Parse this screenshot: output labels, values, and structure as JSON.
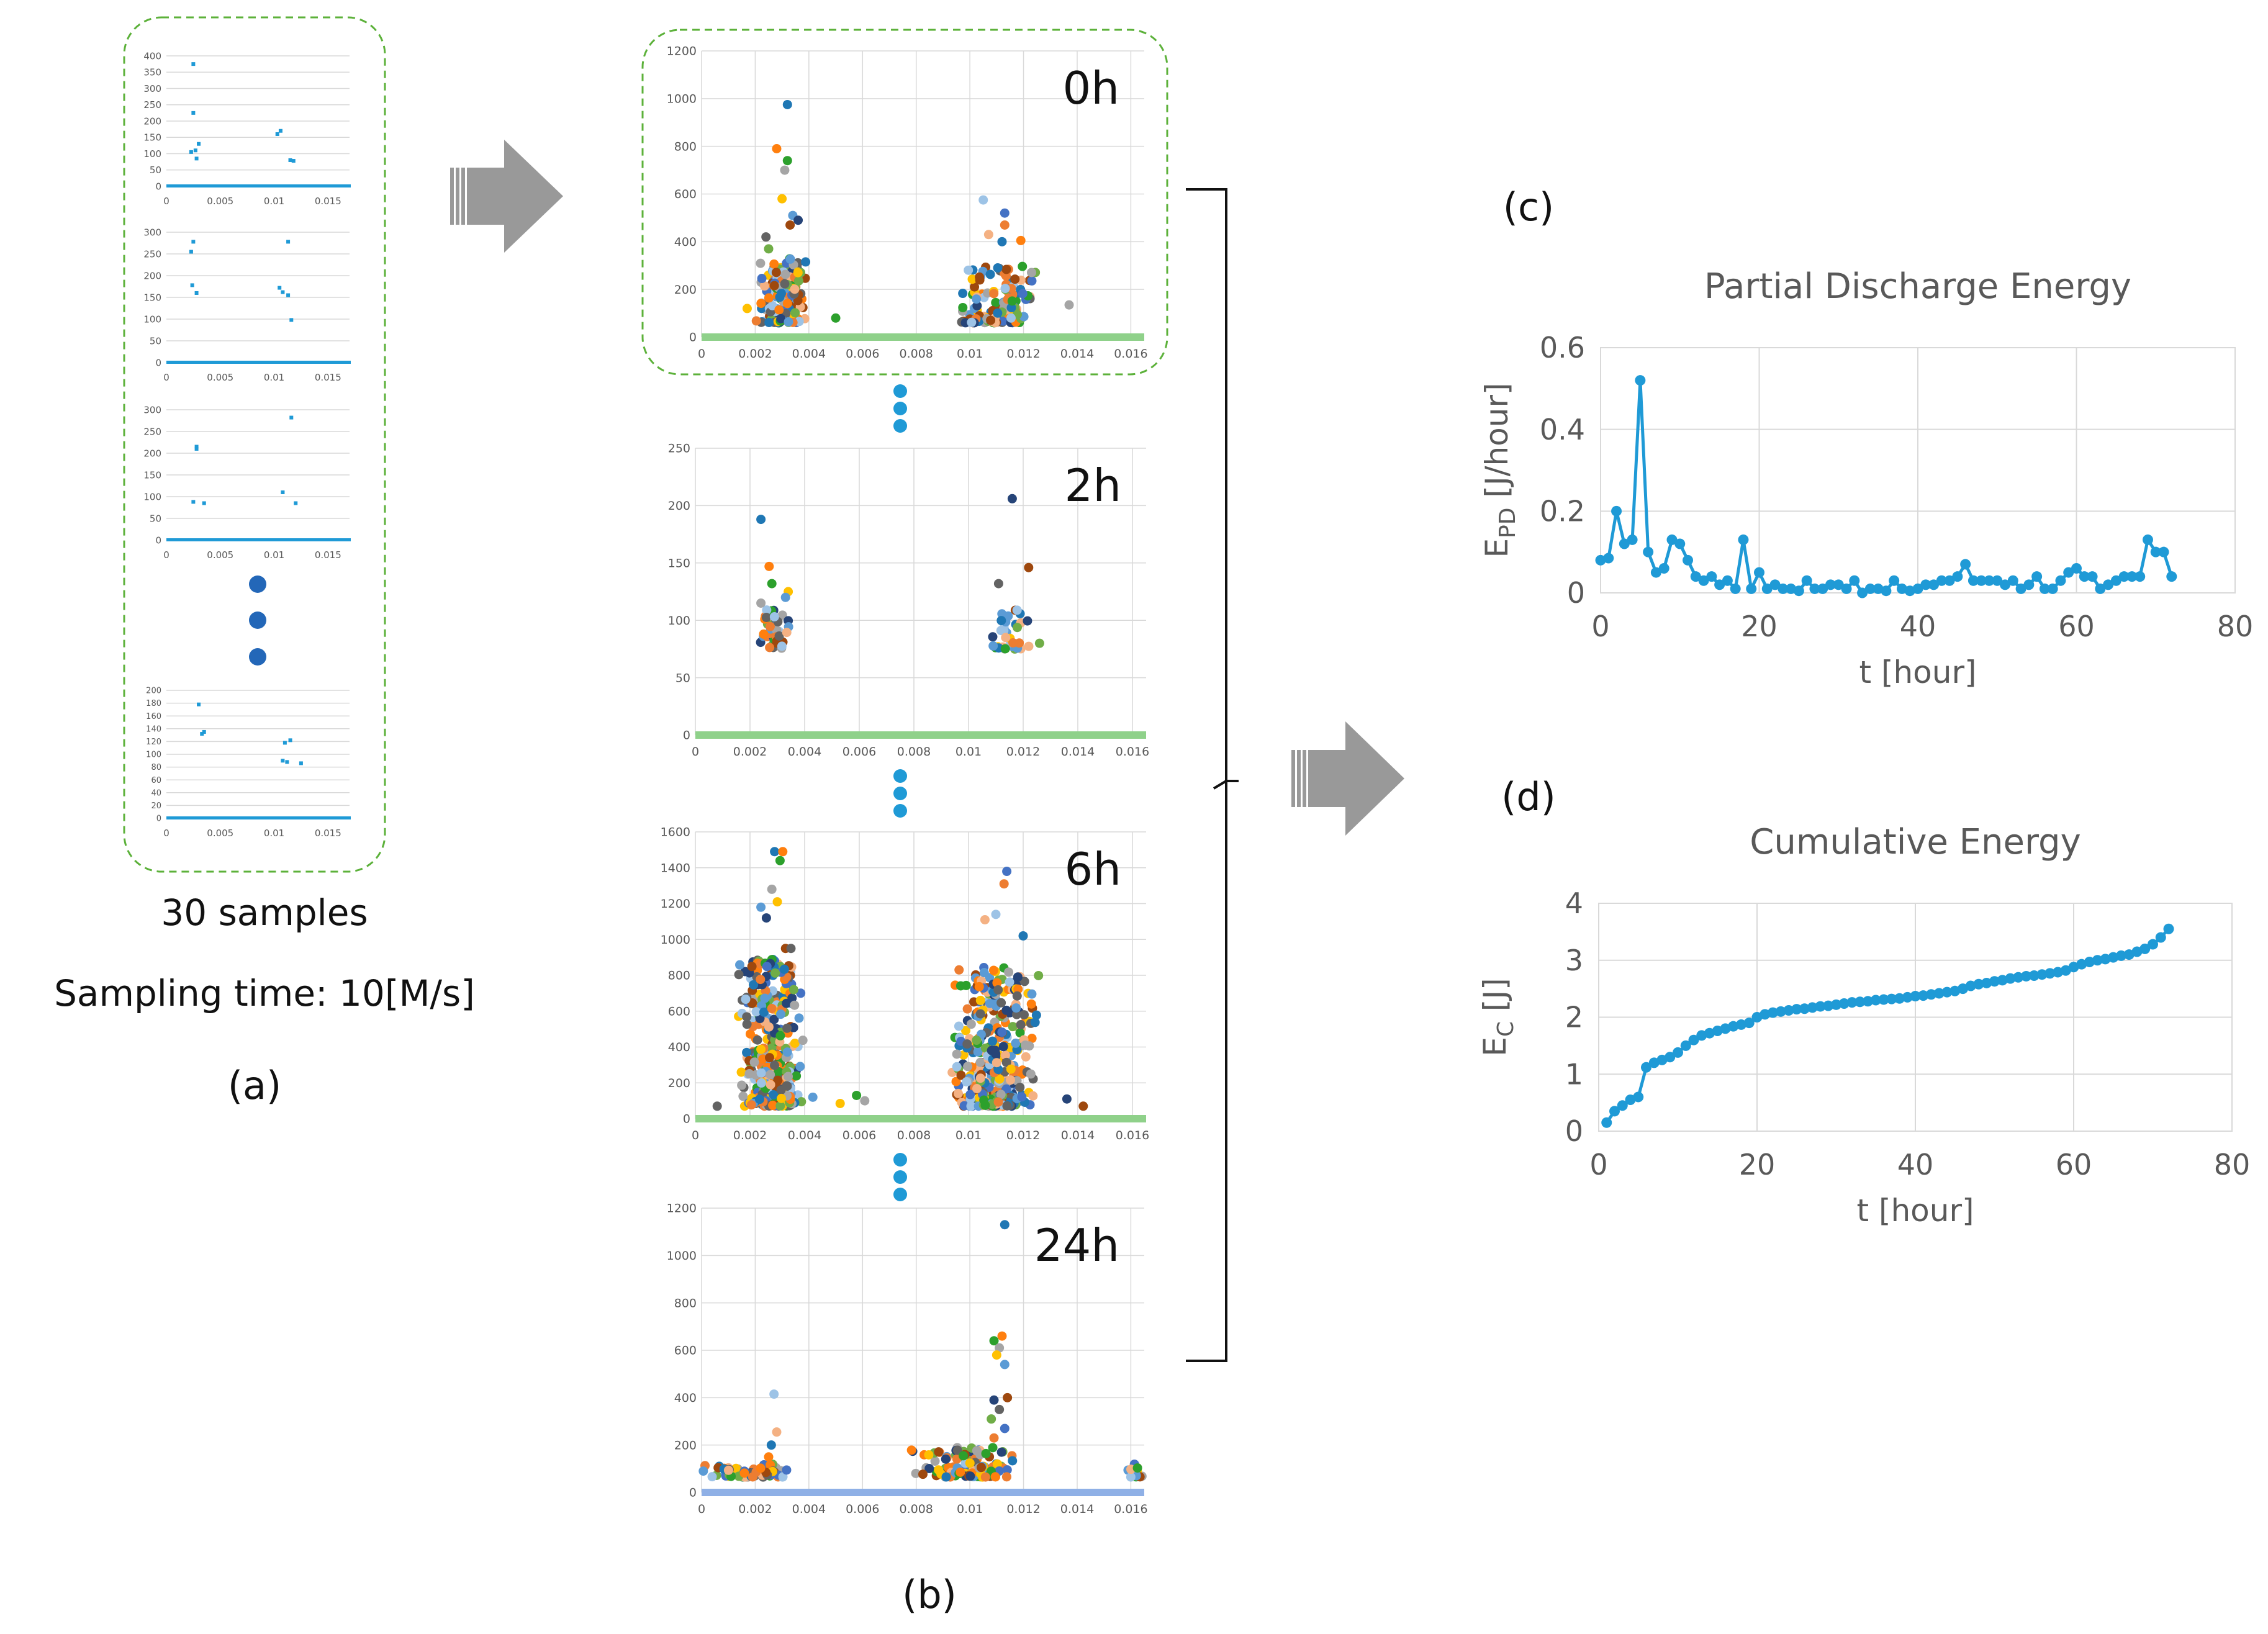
{
  "figure": {
    "panel_a": {
      "caption_samples": "30 samples",
      "caption_sampling": "Sampling time: 10[M/s]",
      "label": "(a)"
    },
    "panel_b": {
      "label": "(b)"
    },
    "panel_c": {
      "label": "(c)"
    },
    "panel_d": {
      "label": "(d)"
    }
  },
  "colors": {
    "marker_blue": "#1f9ad6",
    "grid": "#d9d9d9",
    "dash_green": "#5cb13a",
    "arrow_gray": "#999999",
    "baseline_green": "#8fd18a",
    "baseline_blue": "#8fb0e6",
    "dot_dark_blue": "#2367b8",
    "palette": [
      "#1f77b4",
      "#ff7f0e",
      "#2ca02c",
      "#a5a5a5",
      "#ffc000",
      "#5b9bd5",
      "#264478",
      "#9e480e",
      "#636363",
      "#70ad47",
      "#4472c4",
      "#ed7d31",
      "#9dc3e6",
      "#f4b183"
    ]
  },
  "chart_data": [
    {
      "id": "a1",
      "type": "scatter",
      "title": "",
      "xlim": [
        0,
        0.017
      ],
      "ylim": [
        0,
        400
      ],
      "x_ticks": [
        "0",
        "0.005",
        "0.01",
        "0.015"
      ],
      "x_tick_values": [
        0,
        0.005,
        0.01,
        0.015
      ],
      "y_ticks": [
        "0",
        "50",
        "100",
        "150",
        "200",
        "250",
        "300",
        "350",
        "400"
      ],
      "y_tick_values": [
        0,
        50,
        100,
        150,
        200,
        250,
        300,
        350,
        400
      ],
      "points": [
        [
          0.0025,
          375
        ],
        [
          0.0025,
          225
        ],
        [
          0.0027,
          110
        ],
        [
          0.003,
          130
        ],
        [
          0.0028,
          85
        ],
        [
          0.0023,
          105
        ],
        [
          0.0103,
          160
        ],
        [
          0.0106,
          170
        ],
        [
          0.0115,
          80
        ],
        [
          0.0118,
          78
        ]
      ]
    },
    {
      "id": "a2",
      "type": "scatter",
      "title": "",
      "xlim": [
        0,
        0.017
      ],
      "ylim": [
        0,
        300
      ],
      "x_ticks": [
        "0",
        "0.005",
        "0.01",
        "0.015"
      ],
      "x_tick_values": [
        0,
        0.005,
        0.01,
        0.015
      ],
      "y_ticks": [
        "0",
        "50",
        "100",
        "150",
        "200",
        "250",
        "300"
      ],
      "y_tick_values": [
        0,
        50,
        100,
        150,
        200,
        250,
        300
      ],
      "points": [
        [
          0.0025,
          278
        ],
        [
          0.0023,
          255
        ],
        [
          0.0024,
          178
        ],
        [
          0.0028,
          160
        ],
        [
          0.0105,
          172
        ],
        [
          0.0108,
          162
        ],
        [
          0.0113,
          155
        ],
        [
          0.0113,
          278
        ],
        [
          0.0116,
          98
        ]
      ]
    },
    {
      "id": "a3",
      "type": "scatter",
      "title": "",
      "xlim": [
        0,
        0.017
      ],
      "ylim": [
        0,
        300
      ],
      "x_ticks": [
        "0",
        "0.005",
        "0.01",
        "0.015"
      ],
      "x_tick_values": [
        0,
        0.005,
        0.01,
        0.015
      ],
      "y_ticks": [
        "0",
        "50",
        "100",
        "150",
        "200",
        "250",
        "300"
      ],
      "y_tick_values": [
        0,
        50,
        100,
        150,
        200,
        250,
        300
      ],
      "points": [
        [
          0.0028,
          215
        ],
        [
          0.0028,
          210
        ],
        [
          0.0025,
          88
        ],
        [
          0.0035,
          85
        ],
        [
          0.0116,
          282
        ],
        [
          0.0108,
          110
        ],
        [
          0.012,
          85
        ]
      ]
    },
    {
      "id": "a4",
      "type": "scatter",
      "title": "",
      "xlim": [
        0,
        0.017
      ],
      "ylim": [
        0,
        200
      ],
      "x_ticks": [
        "0",
        "0.005",
        "0.01",
        "0.015"
      ],
      "x_tick_values": [
        0,
        0.005,
        0.01,
        0.015
      ],
      "y_ticks": [
        "0",
        "20",
        "40",
        "60",
        "80",
        "100",
        "120",
        "140",
        "160",
        "180",
        "200"
      ],
      "y_tick_values": [
        0,
        20,
        40,
        60,
        80,
        100,
        120,
        140,
        160,
        180,
        200
      ],
      "points": [
        [
          0.003,
          178
        ],
        [
          0.0035,
          135
        ],
        [
          0.0033,
          132
        ],
        [
          0.011,
          118
        ],
        [
          0.0115,
          122
        ],
        [
          0.0108,
          90
        ],
        [
          0.0112,
          88
        ],
        [
          0.0125,
          86
        ]
      ]
    },
    {
      "id": "b0",
      "type": "scatter",
      "annotation": "0h",
      "xlim": [
        0,
        0.0165
      ],
      "ylim": [
        0,
        1200
      ],
      "x_ticks": [
        "0",
        "0.002",
        "0.004",
        "0.006",
        "0.008",
        "0.01",
        "0.012",
        "0.014",
        "0.016"
      ],
      "x_tick_values": [
        0,
        0.002,
        0.004,
        0.006,
        0.008,
        0.01,
        0.012,
        0.014,
        0.016
      ],
      "y_ticks": [
        "0",
        "200",
        "400",
        "600",
        "800",
        "1000",
        "1200"
      ],
      "y_tick_values": [
        0,
        200,
        400,
        600,
        800,
        1000,
        1200
      ],
      "baseline": "green",
      "clusters": [
        {
          "x0": 0.002,
          "x1": 0.0041,
          "ymin": 60,
          "ymax": 330,
          "n": 150
        },
        {
          "x0": 0.0095,
          "x1": 0.0126,
          "ymin": 60,
          "ymax": 300,
          "n": 130
        }
      ],
      "points": [
        [
          0.0032,
          975
        ],
        [
          0.0028,
          790
        ],
        [
          0.0032,
          740
        ],
        [
          0.0031,
          700
        ],
        [
          0.003,
          580
        ],
        [
          0.0034,
          510
        ],
        [
          0.0036,
          490
        ],
        [
          0.0033,
          470
        ],
        [
          0.0024,
          420
        ],
        [
          0.0025,
          370
        ],
        [
          0.0113,
          520
        ],
        [
          0.0113,
          470
        ],
        [
          0.0105,
          575
        ],
        [
          0.0107,
          430
        ],
        [
          0.0112,
          400
        ],
        [
          0.0119,
          405
        ],
        [
          0.005,
          80
        ],
        [
          0.0137,
          135
        ],
        [
          0.0017,
          120
        ]
      ]
    },
    {
      "id": "b2",
      "type": "scatter",
      "annotation": "2h",
      "xlim": [
        0,
        0.0165
      ],
      "ylim": [
        0,
        250
      ],
      "x_ticks": [
        "0",
        "0.002",
        "0.004",
        "0.006",
        "0.008",
        "0.01",
        "0.012",
        "0.014",
        "0.016"
      ],
      "x_tick_values": [
        0,
        0.002,
        0.004,
        0.006,
        0.008,
        0.01,
        0.012,
        0.014,
        0.016
      ],
      "y_ticks": [
        "0",
        "50",
        "100",
        "150",
        "200",
        "250"
      ],
      "y_tick_values": [
        0,
        50,
        100,
        150,
        200,
        250
      ],
      "baseline": "green",
      "clusters": [
        {
          "x0": 0.0022,
          "x1": 0.0036,
          "ymin": 75,
          "ymax": 110,
          "n": 40
        },
        {
          "x0": 0.0108,
          "x1": 0.0123,
          "ymin": 75,
          "ymax": 110,
          "n": 35
        }
      ],
      "points": [
        [
          0.0024,
          188
        ],
        [
          0.0027,
          147
        ],
        [
          0.0028,
          132
        ],
        [
          0.0024,
          115
        ],
        [
          0.0034,
          125
        ],
        [
          0.0033,
          120
        ],
        [
          0.0116,
          206
        ],
        [
          0.0122,
          146
        ],
        [
          0.0111,
          132
        ],
        [
          0.0126,
          80
        ]
      ]
    },
    {
      "id": "b6",
      "type": "scatter",
      "annotation": "6h",
      "xlim": [
        0,
        0.0165
      ],
      "ylim": [
        0,
        1600
      ],
      "x_ticks": [
        "0",
        "0.002",
        "0.004",
        "0.006",
        "0.008",
        "0.01",
        "0.012",
        "0.014",
        "0.016"
      ],
      "x_tick_values": [
        0,
        0.002,
        0.004,
        0.006,
        0.008,
        0.01,
        0.012,
        0.014,
        0.016
      ],
      "y_ticks": [
        "0",
        "200",
        "400",
        "600",
        "800",
        "1000",
        "1200",
        "1400",
        "1600"
      ],
      "y_tick_values": [
        0,
        200,
        400,
        600,
        800,
        1000,
        1200,
        1400,
        1600
      ],
      "baseline": "green",
      "clusters": [
        {
          "x0": 0.0015,
          "x1": 0.004,
          "ymin": 70,
          "ymax": 900,
          "n": 380
        },
        {
          "x0": 0.0092,
          "x1": 0.0126,
          "ymin": 70,
          "ymax": 850,
          "n": 380
        }
      ],
      "points": [
        [
          0.0029,
          1490
        ],
        [
          0.0032,
          1490
        ],
        [
          0.0031,
          1440
        ],
        [
          0.0028,
          1280
        ],
        [
          0.003,
          1210
        ],
        [
          0.0024,
          1180
        ],
        [
          0.0026,
          1120
        ],
        [
          0.0033,
          950
        ],
        [
          0.0035,
          950
        ],
        [
          0.0036,
          720
        ],
        [
          0.0114,
          1380
        ],
        [
          0.0113,
          1310
        ],
        [
          0.011,
          1140
        ],
        [
          0.0106,
          1110
        ],
        [
          0.012,
          1020
        ],
        [
          0.0123,
          640
        ],
        [
          0.0059,
          130
        ],
        [
          0.0062,
          100
        ],
        [
          0.0053,
          85
        ],
        [
          0.0043,
          120
        ],
        [
          0.0136,
          110
        ],
        [
          0.0142,
          70
        ],
        [
          0.0008,
          70
        ]
      ]
    },
    {
      "id": "b24",
      "type": "scatter",
      "annotation": "24h",
      "xlim": [
        0,
        0.0165
      ],
      "ylim": [
        0,
        1200
      ],
      "x_ticks": [
        "0",
        "0.002",
        "0.004",
        "0.006",
        "0.008",
        "0.01",
        "0.012",
        "0.014",
        "0.016"
      ],
      "x_tick_values": [
        0,
        0.002,
        0.004,
        0.006,
        0.008,
        0.01,
        0.012,
        0.014,
        0.016
      ],
      "y_ticks": [
        "0",
        "200",
        "400",
        "600",
        "800",
        "1000",
        "1200"
      ],
      "y_tick_values": [
        0,
        200,
        400,
        600,
        800,
        1000,
        1200
      ],
      "baseline": "blue",
      "clusters": [
        {
          "x0": 0.0,
          "x1": 0.0034,
          "ymin": 65,
          "ymax": 120,
          "n": 70
        },
        {
          "x0": 0.0077,
          "x1": 0.0123,
          "ymin": 65,
          "ymax": 190,
          "n": 110
        },
        {
          "x0": 0.0158,
          "x1": 0.0165,
          "ymin": 65,
          "ymax": 120,
          "n": 14
        }
      ],
      "points": [
        [
          0.0113,
          1130
        ],
        [
          0.0112,
          660
        ],
        [
          0.0109,
          640
        ],
        [
          0.0111,
          610
        ],
        [
          0.011,
          580
        ],
        [
          0.0113,
          540
        ],
        [
          0.0109,
          390
        ],
        [
          0.0114,
          400
        ],
        [
          0.0111,
          350
        ],
        [
          0.0108,
          310
        ],
        [
          0.0113,
          270
        ],
        [
          0.0109,
          230
        ],
        [
          0.0027,
          415
        ],
        [
          0.0028,
          255
        ],
        [
          0.0026,
          200
        ],
        [
          0.0025,
          150
        ]
      ]
    },
    {
      "id": "c",
      "type": "line",
      "title": "Partial Discharge Energy",
      "xlabel": "t [hour]",
      "ylabel_main": "E",
      "ylabel_sub": "PD",
      "ylabel_unit": " [J/hour]",
      "xlim": [
        0,
        80
      ],
      "ylim": [
        0,
        0.6
      ],
      "x_ticks": [
        "0",
        "20",
        "40",
        "60",
        "80"
      ],
      "x_tick_values": [
        0,
        20,
        40,
        60,
        80
      ],
      "y_ticks": [
        "0",
        "0.2",
        "0.4",
        "0.6"
      ],
      "y_tick_values": [
        0,
        0.2,
        0.4,
        0.6
      ],
      "x": [
        0,
        1,
        2,
        3,
        4,
        5,
        6,
        7,
        8,
        9,
        10,
        11,
        12,
        13,
        14,
        15,
        16,
        17,
        18,
        19,
        20,
        21,
        22,
        23,
        24,
        25,
        26,
        27,
        28,
        29,
        30,
        31,
        32,
        33,
        34,
        35,
        36,
        37,
        38,
        39,
        40,
        41,
        42,
        43,
        44,
        45,
        46,
        47,
        48,
        49,
        50,
        51,
        52,
        53,
        54,
        55,
        56,
        57,
        58,
        59,
        60,
        61,
        62,
        63,
        64,
        65,
        66,
        67,
        68,
        69,
        70,
        71,
        72
      ],
      "y": [
        0.08,
        0.085,
        0.2,
        0.12,
        0.13,
        0.52,
        0.1,
        0.05,
        0.06,
        0.13,
        0.12,
        0.08,
        0.04,
        0.03,
        0.04,
        0.02,
        0.03,
        0.01,
        0.13,
        0.01,
        0.05,
        0.01,
        0.02,
        0.01,
        0.01,
        0.005,
        0.03,
        0.01,
        0.01,
        0.02,
        0.02,
        0.01,
        0.03,
        0.0,
        0.01,
        0.01,
        0.005,
        0.03,
        0.01,
        0.005,
        0.01,
        0.02,
        0.02,
        0.03,
        0.03,
        0.04,
        0.07,
        0.03,
        0.03,
        0.03,
        0.03,
        0.02,
        0.03,
        0.01,
        0.02,
        0.04,
        0.01,
        0.01,
        0.03,
        0.05,
        0.06,
        0.04,
        0.04,
        0.01,
        0.02,
        0.03,
        0.04,
        0.04,
        0.04,
        0.13,
        0.1,
        0.1,
        0.04
      ]
    },
    {
      "id": "d",
      "type": "line",
      "title": "Cumulative Energy",
      "xlabel": "t [hour]",
      "ylabel_main": "E",
      "ylabel_sub": "C",
      "ylabel_unit": " [J]",
      "xlim": [
        0,
        80
      ],
      "ylim": [
        0,
        4
      ],
      "x_ticks": [
        "0",
        "20",
        "40",
        "60",
        "80"
      ],
      "x_tick_values": [
        0,
        20,
        40,
        60,
        80
      ],
      "y_ticks": [
        "0",
        "1",
        "2",
        "3",
        "4"
      ],
      "y_tick_values": [
        0,
        1,
        2,
        3,
        4
      ],
      "x": [
        1,
        2,
        3,
        4,
        5,
        6,
        7,
        8,
        9,
        10,
        11,
        12,
        13,
        14,
        15,
        16,
        17,
        18,
        19,
        20,
        21,
        22,
        23,
        24,
        25,
        26,
        27,
        28,
        29,
        30,
        31,
        32,
        33,
        34,
        35,
        36,
        37,
        38,
        39,
        40,
        41,
        42,
        43,
        44,
        45,
        46,
        47,
        48,
        49,
        50,
        51,
        52,
        53,
        54,
        55,
        56,
        57,
        58,
        59,
        60,
        61,
        62,
        63,
        64,
        65,
        66,
        67,
        68,
        69,
        70,
        71,
        72
      ],
      "y": [
        0.15,
        0.35,
        0.45,
        0.55,
        0.6,
        1.12,
        1.2,
        1.25,
        1.3,
        1.38,
        1.5,
        1.6,
        1.68,
        1.72,
        1.76,
        1.8,
        1.84,
        1.87,
        1.9,
        2.0,
        2.05,
        2.08,
        2.1,
        2.12,
        2.14,
        2.15,
        2.17,
        2.19,
        2.2,
        2.22,
        2.24,
        2.26,
        2.27,
        2.28,
        2.3,
        2.31,
        2.32,
        2.33,
        2.35,
        2.37,
        2.38,
        2.4,
        2.42,
        2.44,
        2.46,
        2.5,
        2.55,
        2.58,
        2.6,
        2.63,
        2.65,
        2.68,
        2.7,
        2.72,
        2.73,
        2.75,
        2.77,
        2.79,
        2.82,
        2.88,
        2.93,
        2.97,
        3.0,
        3.02,
        3.05,
        3.08,
        3.1,
        3.15,
        3.2,
        3.28,
        3.4,
        3.55
      ]
    }
  ]
}
